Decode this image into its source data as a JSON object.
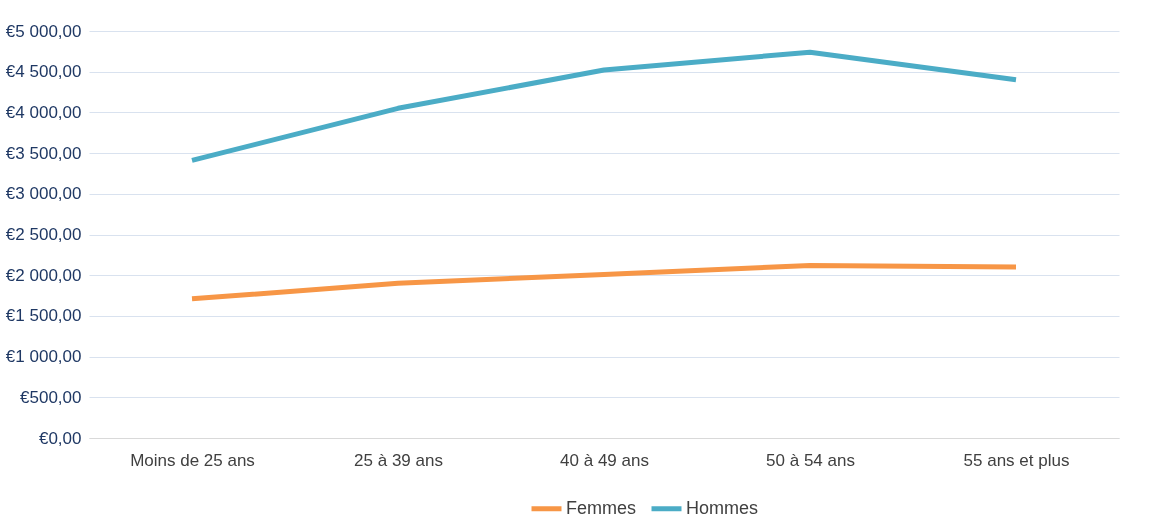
{
  "chart_data": {
    "type": "line",
    "categories": [
      "Moins de 25 ans",
      "25 à 39 ans",
      "40 à 49 ans",
      "50 à 54 ans",
      "55 ans et plus"
    ],
    "series": [
      {
        "name": "Femmes",
        "color": "#f79646",
        "values": [
          1710,
          1900,
          2010,
          2120,
          2100
        ]
      },
      {
        "name": "Hommes",
        "color": "#4bacc6",
        "values": [
          3410,
          4050,
          4520,
          4740,
          4400
        ]
      }
    ],
    "ylim": [
      0,
      5000
    ],
    "yticks": [
      {
        "value": 0,
        "label": "€0,00"
      },
      {
        "value": 500,
        "label": "€500,00"
      },
      {
        "value": 1000,
        "label": "€1 000,00"
      },
      {
        "value": 1500,
        "label": "€1 500,00"
      },
      {
        "value": 2000,
        "label": "€2 000,00"
      },
      {
        "value": 2500,
        "label": "€2 500,00"
      },
      {
        "value": 3000,
        "label": "€3 000,00"
      },
      {
        "value": 3500,
        "label": "€3 500,00"
      },
      {
        "value": 4000,
        "label": "€4 000,00"
      },
      {
        "value": 4500,
        "label": "€4 500,00"
      },
      {
        "value": 5000,
        "label": "€5 000,00"
      }
    ],
    "grid": "y",
    "legend": "bottom",
    "marker": "none",
    "line_style": "solid"
  }
}
